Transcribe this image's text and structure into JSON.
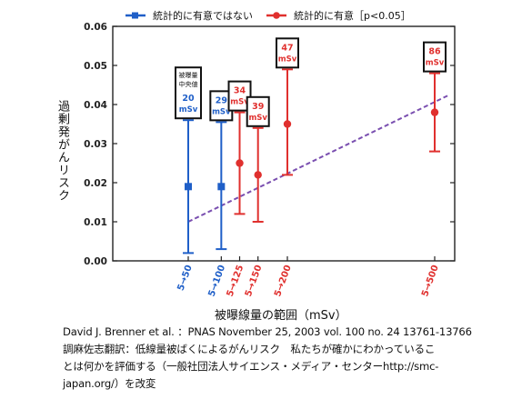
{
  "legend": {
    "not_significant": "統計的に有意ではない",
    "significant": "統計的に有意［p<0.05］"
  },
  "axis": {
    "ylabel": "過剰発がんリスク",
    "xlabel": "被曝線量の範囲（mSv）"
  },
  "caption": {
    "line1": "David J. Brenner et al. ：PNAS November 25, 2003 vol. 100 no. 24 13761-13766",
    "line2": "調麻佐志翻訳：低線量被ばくによるがんリスク　私たちが確かにわかっているこ",
    "line3": "とは何かを評価する（一般社団法人サイエンス・メディア・センターhttp://smc-",
    "line4": "japan.org/）を改変"
  },
  "colors": {
    "not_significant": "#1f5fc8",
    "significant": "#e0302e",
    "trend": "#7a4fb0"
  },
  "chart_data": {
    "type": "scatter",
    "ylabel": "過剰発がんリスク",
    "xlabel": "被曝線量の範囲（mSv）",
    "ylim": [
      0,
      0.06
    ],
    "yticks": [
      "0.00",
      "0.01",
      "0.02",
      "0.03",
      "0.04",
      "0.05",
      "0.06"
    ],
    "categories": [
      "5→50",
      "5→100",
      "5→125",
      "5→150",
      "5→200",
      "5→500"
    ],
    "median_header": [
      "被曝量",
      "中央値"
    ],
    "points": [
      {
        "range": "5→50",
        "x": 20,
        "y": 0.019,
        "low": 0.002,
        "high": 0.036,
        "median": "20",
        "unit": "mSv",
        "significant": false
      },
      {
        "range": "5→100",
        "x": 29,
        "y": 0.019,
        "low": 0.003,
        "high": 0.0355,
        "median": "29",
        "unit": "mSv",
        "significant": false
      },
      {
        "range": "5→125",
        "x": 34,
        "y": 0.025,
        "low": 0.012,
        "high": 0.038,
        "median": "34",
        "unit": "mSv",
        "significant": true
      },
      {
        "range": "5→150",
        "x": 39,
        "y": 0.022,
        "low": 0.01,
        "high": 0.034,
        "median": "39",
        "unit": "mSv",
        "significant": true
      },
      {
        "range": "5→200",
        "x": 47,
        "y": 0.035,
        "low": 0.022,
        "high": 0.049,
        "median": "47",
        "unit": "mSv",
        "significant": true
      },
      {
        "range": "5→500",
        "x": 86,
        "y": 0.038,
        "low": 0.028,
        "high": 0.048,
        "median": "86",
        "unit": "mSv",
        "significant": true
      }
    ],
    "trend_line": {
      "start": [
        20,
        0.01
      ],
      "end": [
        86,
        0.042
      ]
    },
    "legend_position": "top"
  }
}
